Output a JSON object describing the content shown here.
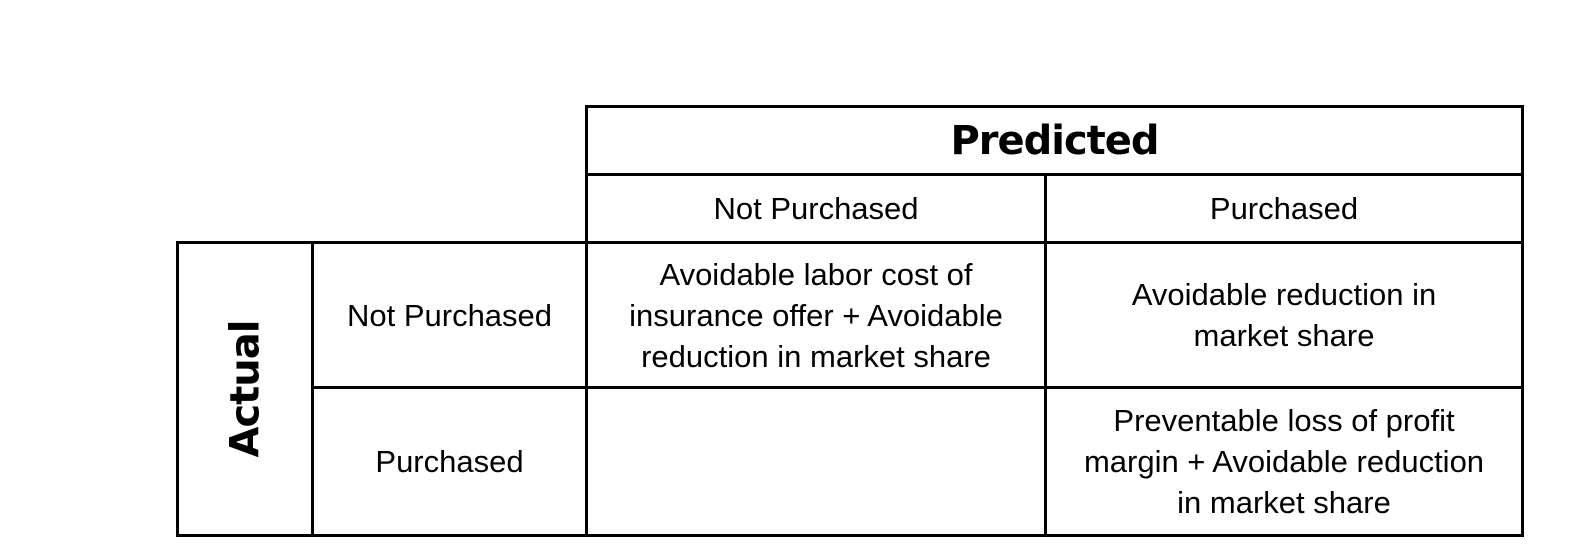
{
  "matrix": {
    "predicted_label": "Predicted",
    "actual_label": "Actual",
    "columns": [
      "Not Purchased",
      "Purchased"
    ],
    "rows": [
      "Not Purchased",
      "Purchased"
    ],
    "cells": [
      [
        "Avoidable labor cost of insurance offer + Avoidable reduction in market share",
        "Avoidable reduction in market share"
      ],
      [
        "",
        "Preventable loss of profit margin + Avoidable reduction in market share"
      ]
    ]
  }
}
